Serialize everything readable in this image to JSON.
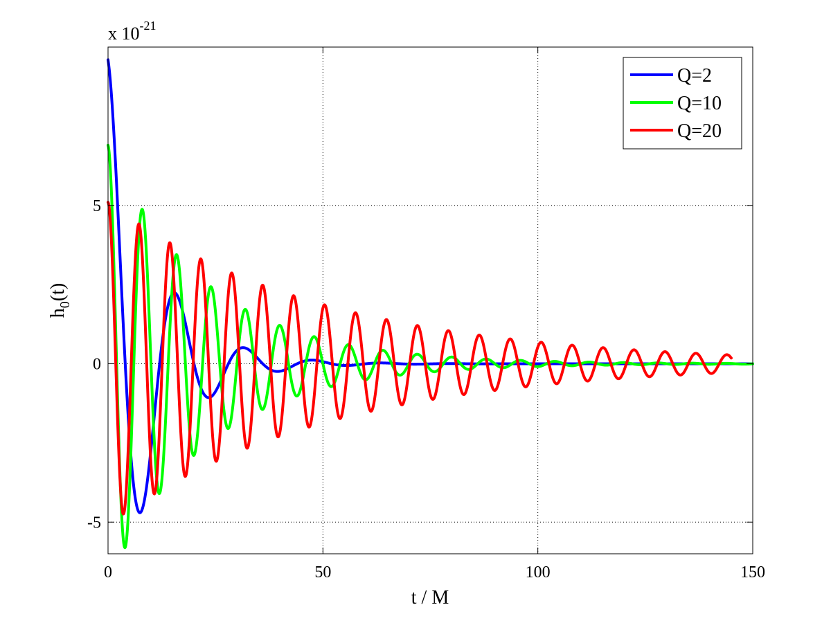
{
  "chart_data": {
    "type": "line",
    "title": "",
    "xlabel": "t / M",
    "ylabel_main": "h",
    "ylabel_sub": "0",
    "ylabel_suffix": "(t)",
    "y_exponent_base": "x 10",
    "y_exponent_power": "-21",
    "xlim": [
      0,
      150
    ],
    "ylim": [
      -6,
      10
    ],
    "x_ticks": [
      0,
      50,
      100,
      150
    ],
    "x_tick_labels": [
      "0",
      "50",
      "100",
      "150"
    ],
    "y_ticks": [
      -5,
      0,
      5
    ],
    "y_tick_labels": [
      "-5",
      "0",
      "5"
    ],
    "grid": true,
    "legend_position": "top-right",
    "series": [
      {
        "name": "Q=2",
        "color": "#0000ff",
        "x_end": 150,
        "model": {
          "A": 9.6,
          "decay_tau": 10.8,
          "period": 16.0,
          "t_offset": 0
        }
      },
      {
        "name": "Q=10",
        "color": "#00ff00",
        "x_end": 150,
        "model": {
          "A": 6.9,
          "decay_tau": 23.0,
          "period": 8.0,
          "t_offset": 0
        }
      },
      {
        "name": "Q=20",
        "color": "#ff0000",
        "x_end": 145,
        "model": {
          "A": 5.1,
          "decay_tau": 50.0,
          "period": 7.2,
          "t_offset": 0
        }
      }
    ]
  }
}
